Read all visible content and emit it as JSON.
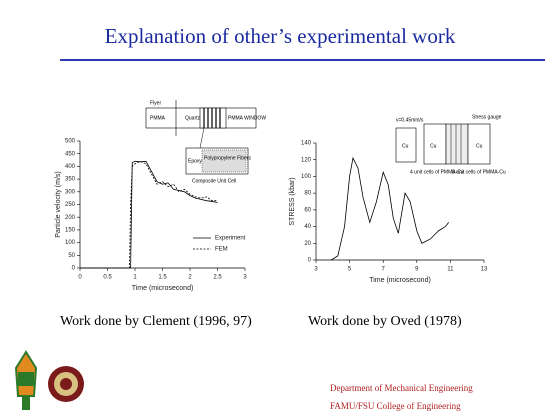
{
  "title": "Explanation of other’s experimental work",
  "chart_data": [
    {
      "type": "line",
      "xlabel": "Time (microsecond)",
      "ylabel": "Particle velocity (m/s)",
      "x": [
        0,
        0.9,
        0.92,
        0.95,
        1.0,
        1.1,
        1.2,
        1.3,
        1.4,
        1.5,
        1.6,
        1.7,
        1.8,
        1.9,
        2.0,
        2.1,
        2.2,
        2.3,
        2.4,
        2.5
      ],
      "series": [
        {
          "name": "Experiment",
          "color": "#000000",
          "dash": false,
          "values": [
            0,
            0,
            0,
            415,
            420,
            418,
            420,
            380,
            340,
            330,
            335,
            310,
            305,
            300,
            285,
            275,
            270,
            265,
            262,
            258
          ]
        },
        {
          "name": "FEM",
          "color": "#000000",
          "dash": true,
          "values": [
            0,
            0,
            250,
            400,
            410,
            420,
            410,
            370,
            330,
            340,
            320,
            330,
            300,
            310,
            290,
            280,
            275,
            280,
            265,
            265
          ]
        }
      ],
      "xlim": [
        0,
        3
      ],
      "xticks": [
        0,
        0.5,
        1,
        1.5,
        2,
        2.5,
        3
      ],
      "ylim": [
        0,
        500
      ],
      "yticks": [
        0,
        50,
        100,
        150,
        200,
        250,
        300,
        350,
        400,
        450,
        500
      ],
      "legend": true
    },
    {
      "type": "line",
      "xlabel": "Time (microsecond)",
      "ylabel": "STRESS (kbar)",
      "x": [
        3.9,
        4.3,
        4.7,
        5.0,
        5.2,
        5.5,
        5.8,
        6.2,
        6.6,
        7.0,
        7.3,
        7.6,
        7.9,
        8.3,
        8.6,
        9.0,
        9.3,
        9.8,
        10.3,
        10.7,
        10.9
      ],
      "series": [
        {
          "color": "#000000",
          "dash": false,
          "values": [
            0,
            5,
            40,
            100,
            122,
            110,
            75,
            45,
            70,
            105,
            90,
            50,
            32,
            80,
            70,
            35,
            20,
            25,
            35,
            40,
            45
          ]
        }
      ],
      "xlim": [
        3,
        13
      ],
      "xticks": [
        3,
        5,
        7,
        9,
        11,
        13
      ],
      "ylim": [
        0,
        140
      ],
      "yticks": [
        0,
        20,
        40,
        60,
        80,
        100,
        120,
        140
      ],
      "legend": false
    }
  ],
  "diagrams": [
    {
      "labels": [
        "Flyer",
        "PMMA",
        "Quartz",
        "PMMA WINDOW",
        "Epoxy",
        "Polypropylene Fibers",
        "Composite Unit Cell"
      ]
    },
    {
      "labels": [
        "v=0.45mm/s",
        "Stress gauge",
        "Cu",
        "Cu",
        "Cu",
        "4 unit cells of PMMA-Cu",
        "8 unit cells of PMMA-Cu"
      ]
    }
  ],
  "captions": [
    "Work done by Clement (1996, 97)",
    "Work done by Oved (1978)"
  ],
  "footer": [
    "Department of Mechanical Engineering",
    "FAMU/FSU College of Engineering"
  ]
}
